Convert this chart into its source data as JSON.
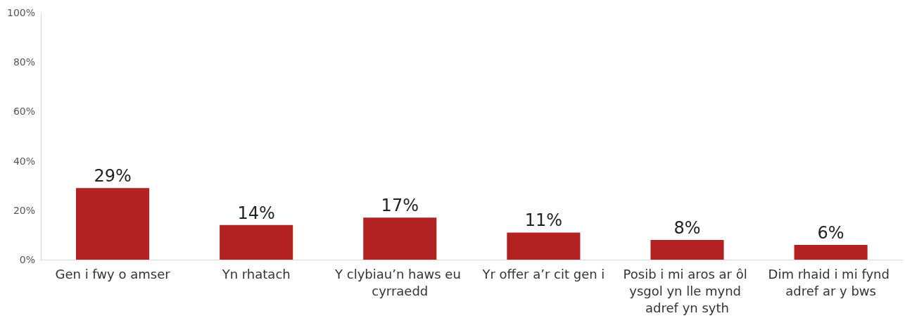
{
  "chart_data": {
    "type": "bar",
    "categories": [
      "Gen i fwy o amser",
      "Yn rhatach",
      "Y clybiau’n haws eu cyrraedd",
      "Yr offer a’r cit gen i",
      "Posib i mi aros ar ôl ysgol yn lle mynd adref yn syth",
      "Dim rhaid i mi fynd adref ar y bws"
    ],
    "values": [
      29,
      14,
      17,
      11,
      8,
      6
    ],
    "value_labels": [
      "29%",
      "14%",
      "17%",
      "11%",
      "8%",
      "6%"
    ],
    "color": "#b22222",
    "ylim": [
      0,
      100
    ],
    "yticks": [
      {
        "value": 0,
        "label": "0%"
      },
      {
        "value": 20,
        "label": "20%"
      },
      {
        "value": 40,
        "label": "40%"
      },
      {
        "value": 60,
        "label": "60%"
      },
      {
        "value": 80,
        "label": "80%"
      },
      {
        "value": 100,
        "label": "100%"
      }
    ],
    "grid": false
  }
}
